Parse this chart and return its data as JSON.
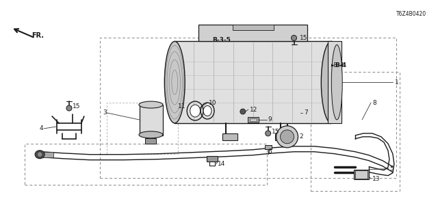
{
  "bg_color": "#ffffff",
  "line_color": "#1a1a1a",
  "fig_width": 6.4,
  "fig_height": 3.2,
  "dpi": 100,
  "diagram_code": "T6Z4B0420"
}
